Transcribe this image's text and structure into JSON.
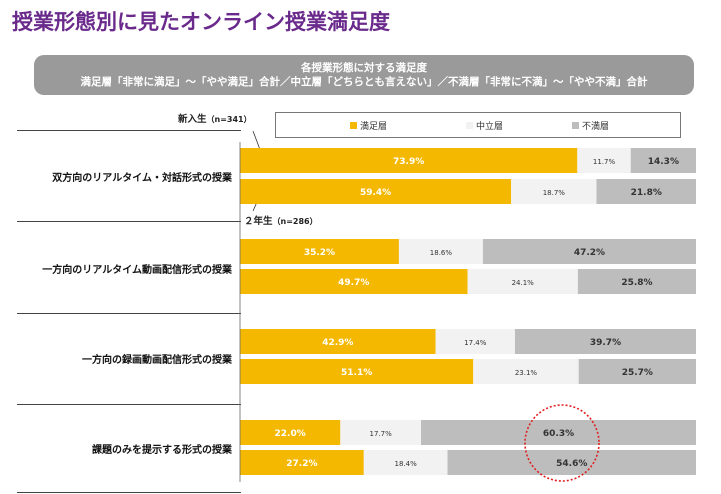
{
  "page_title": "授業形態別に見たオンライン授業満足度",
  "banner": {
    "line1": "各授業形態に対する満足度",
    "line2": "満足層「非常に満足」～「やや満足」合計／中立層「どちらとも言えない」／不満層「非常に不満」～「やや不満」合計"
  },
  "grades": {
    "g1": "新入生",
    "g1_n": "（n=341）",
    "g2": "２年生",
    "g2_n": "（n=286）"
  },
  "colors": {
    "satisfied": "#f5b800",
    "neutral": "#f2f2f2",
    "dissatisfied": "#bdbdbd",
    "title": "#6a2a8c"
  },
  "chart_data": {
    "type": "bar",
    "orientation": "horizontal",
    "stacked": true,
    "unit": "%",
    "legend": [
      "満足層",
      "中立層",
      "不満層"
    ],
    "categories": [
      "双方向のリアルタイム・対話形式の授業",
      "一方向のリアルタイム動画配信形式の授業",
      "一方向の録画動画配信形式の授業",
      "課題のみを提示する形式の授業"
    ],
    "series_groups": [
      "新入生（n=341）",
      "２年生（n=286）"
    ],
    "values": [
      {
        "category": "双方向のリアルタイム・対話形式の授業",
        "新入生": {
          "satisfied": 73.9,
          "neutral": 11.7,
          "dissatisfied": 14.3
        },
        "２年生": {
          "satisfied": 59.4,
          "neutral": 18.7,
          "dissatisfied": 21.8
        }
      },
      {
        "category": "一方向のリアルタイム動画配信形式の授業",
        "新入生": {
          "satisfied": 35.2,
          "neutral": 18.6,
          "dissatisfied": 47.2
        },
        "２年生": {
          "satisfied": 49.7,
          "neutral": 24.1,
          "dissatisfied": 25.8
        }
      },
      {
        "category": "一方向の録画動画配信形式の授業",
        "新入生": {
          "satisfied": 42.9,
          "neutral": 17.4,
          "dissatisfied": 39.7
        },
        "２年生": {
          "satisfied": 51.1,
          "neutral": 23.1,
          "dissatisfied": 25.7
        }
      },
      {
        "category": "課題のみを提示する形式の授業",
        "新入生": {
          "satisfied": 22.0,
          "neutral": 17.7,
          "dissatisfied": 60.3
        },
        "２年生": {
          "satisfied": 27.2,
          "neutral": 18.4,
          "dissatisfied": 54.6
        }
      }
    ],
    "labels": [
      [
        "73.9%",
        "11.7%",
        "14.3%"
      ],
      [
        "59.4%",
        "18.7%",
        "21.8%"
      ],
      [
        "35.2%",
        "18.6%",
        "47.2%"
      ],
      [
        "49.7%",
        "24.1%",
        "25.8%"
      ],
      [
        "42.9%",
        "17.4%",
        "39.7%"
      ],
      [
        "51.1%",
        "23.1%",
        "25.7%"
      ],
      [
        "22.0%",
        "17.7%",
        "60.3%"
      ],
      [
        "27.2%",
        "18.4%",
        "54.6%"
      ]
    ],
    "highlight": {
      "category": "課題のみを提示する形式の授業",
      "segment": "dissatisfied",
      "style": "red dotted circle"
    }
  }
}
